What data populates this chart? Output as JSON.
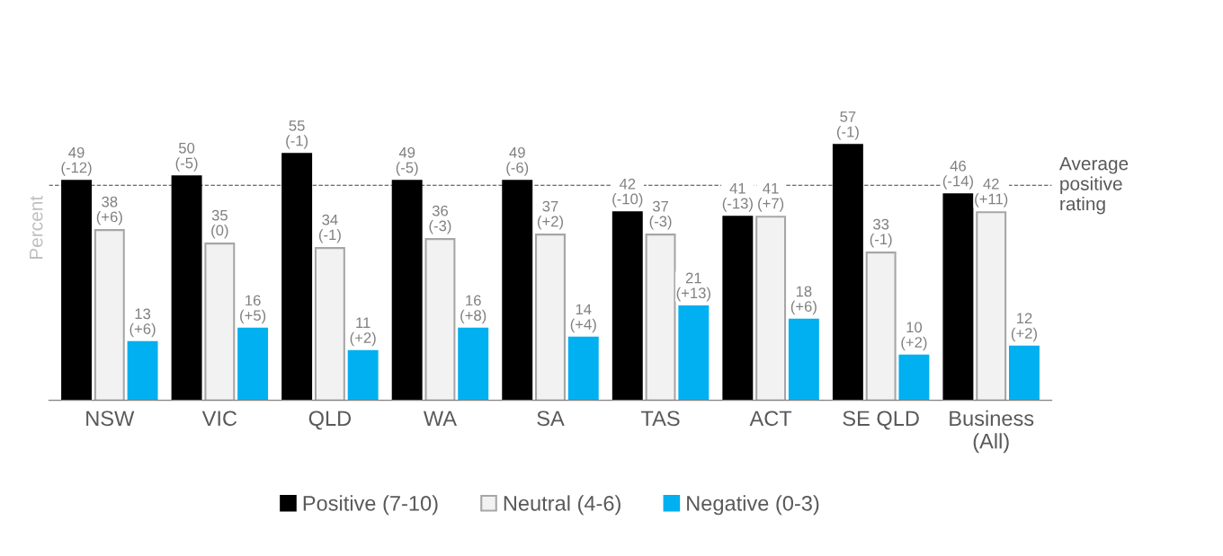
{
  "chart_data": {
    "type": "bar",
    "ylabel": "Percent",
    "categories": [
      "NSW",
      "VIC",
      "QLD",
      "WA",
      "SA",
      "TAS",
      "ACT",
      "SE QLD",
      "Business\n(All)"
    ],
    "series": [
      {
        "name": "Positive (7-10)",
        "color": "#000000",
        "values": [
          49,
          50,
          55,
          49,
          49,
          42,
          41,
          57,
          46
        ],
        "value_labels": [
          "49\n(-12)",
          "50\n(-5)",
          "55\n(-1)",
          "49\n(-5)",
          "49\n(-6)",
          "42\n(-10)",
          "41\n(-13)",
          "57\n(-1)",
          "46\n(-14)"
        ]
      },
      {
        "name": "Neutral (4-6)",
        "color": "#f2f2f2",
        "values": [
          38,
          35,
          34,
          36,
          37,
          37,
          41,
          33,
          42
        ],
        "value_labels": [
          "38\n(+6)",
          "35\n(0)",
          "34\n(-1)",
          "36\n(-3)",
          "37\n(+2)",
          "37\n(-3)",
          "41\n(+7)",
          "33\n(-1)",
          "42\n(+11)"
        ]
      },
      {
        "name": "Negative (0-3)",
        "color": "#00b0f0",
        "values": [
          13,
          16,
          11,
          16,
          14,
          21,
          18,
          10,
          12
        ],
        "value_labels": [
          "13\n(+6)",
          "16\n(+5)",
          "11\n(+2)",
          "16\n(+8)",
          "14\n(+4)",
          "21\n(+13)",
          "18\n(+6)",
          "10\n(+2)",
          "12\n(+2)"
        ]
      }
    ],
    "ref_lines": [
      {
        "axis": "y",
        "value": 48,
        "label": "Average\npositive\nrating",
        "color": "#404040",
        "line_style": "dashed"
      }
    ],
    "legend": "bottom",
    "tick_labels": "x",
    "grid": false
  }
}
